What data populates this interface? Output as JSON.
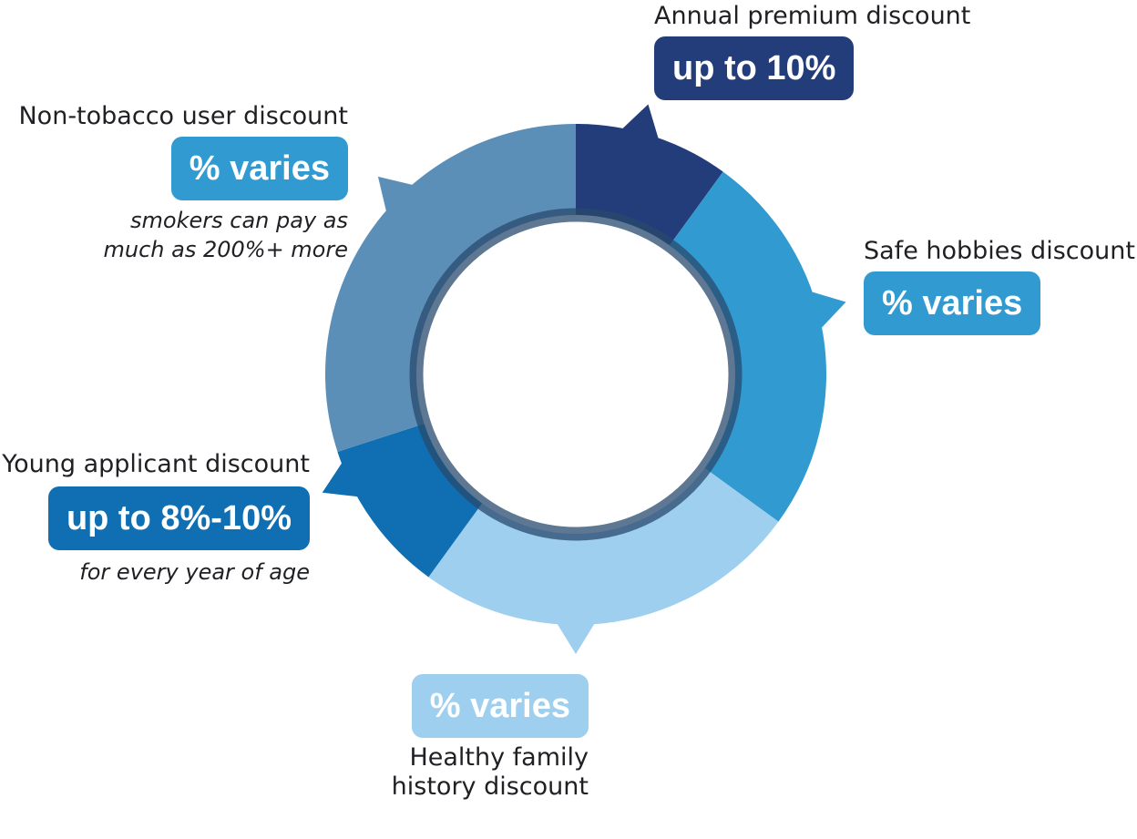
{
  "colors": {
    "annual": "#233d7a",
    "hobbies": "#319ad0",
    "healthy": "#9ecfee",
    "young": "#0f6fb2",
    "tobacco": "#5c8fb8",
    "inner_ring": "#284a6e",
    "background": "#ffffff"
  },
  "chart_data": {
    "type": "pie",
    "style": "donut",
    "slices": [
      {
        "label": "Annual premium discount",
        "value_text": "up to 10%",
        "share": 0.1,
        "color": "#233d7a"
      },
      {
        "label": "Safe hobbies discount",
        "value_text": "% varies",
        "share": 0.25,
        "color": "#319ad0"
      },
      {
        "label": "Healthy family history discount",
        "value_text": "% varies",
        "share": 0.25,
        "color": "#9ecfee"
      },
      {
        "label": "Young applicant discount",
        "value_text": "up to 8%-10%",
        "share": 0.1,
        "color": "#0f6fb2"
      },
      {
        "label": "Non-tobacco user discount",
        "value_text": "% varies",
        "share": 0.3,
        "color": "#5c8fb8"
      }
    ]
  },
  "callouts": {
    "annual": {
      "title": "Annual premium discount",
      "badge": "up to 10%"
    },
    "hobbies": {
      "title": "Safe hobbies discount",
      "badge": "% varies"
    },
    "healthy": {
      "badge": "% varies",
      "title_line1": "Healthy family",
      "title_line2": "history discount"
    },
    "young": {
      "title": "Young applicant discount",
      "badge": "up to 8%-10%",
      "note": "for every year of age"
    },
    "tobacco": {
      "title": "Non-tobacco user discount",
      "badge": "% varies",
      "note_line1": "smokers can pay as",
      "note_line2": "much as 200%+ more"
    }
  }
}
